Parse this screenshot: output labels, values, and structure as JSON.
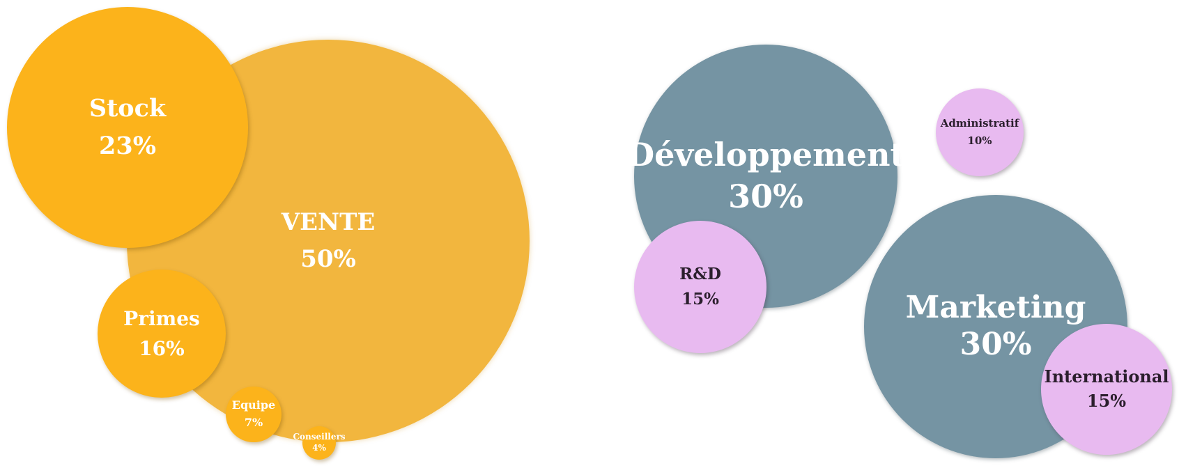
{
  "left_group": {
    "vente": {
      "label": "VENTE",
      "value": "50%"
    },
    "stock": {
      "label": "Stock",
      "value": "23%"
    },
    "primes": {
      "label": "Primes",
      "value": "16%"
    },
    "equipe": {
      "label": "Equipe",
      "value": "7%"
    },
    "conseillers": {
      "label": "Conseillers",
      "value": "4%"
    }
  },
  "right_group": {
    "developpement": {
      "label": "Développement",
      "value": "30%"
    },
    "rd": {
      "label": "R&D",
      "value": "15%"
    },
    "administratif": {
      "label": "Administratif",
      "value": "10%"
    },
    "marketing": {
      "label": "Marketing",
      "value": "30%"
    },
    "international": {
      "label": "International",
      "value": "15%"
    }
  },
  "colors": {
    "gold_light": "#f2b63e",
    "gold": "#fcb31b",
    "slate": "#7594a3",
    "lilac": "#e8baf0"
  }
}
